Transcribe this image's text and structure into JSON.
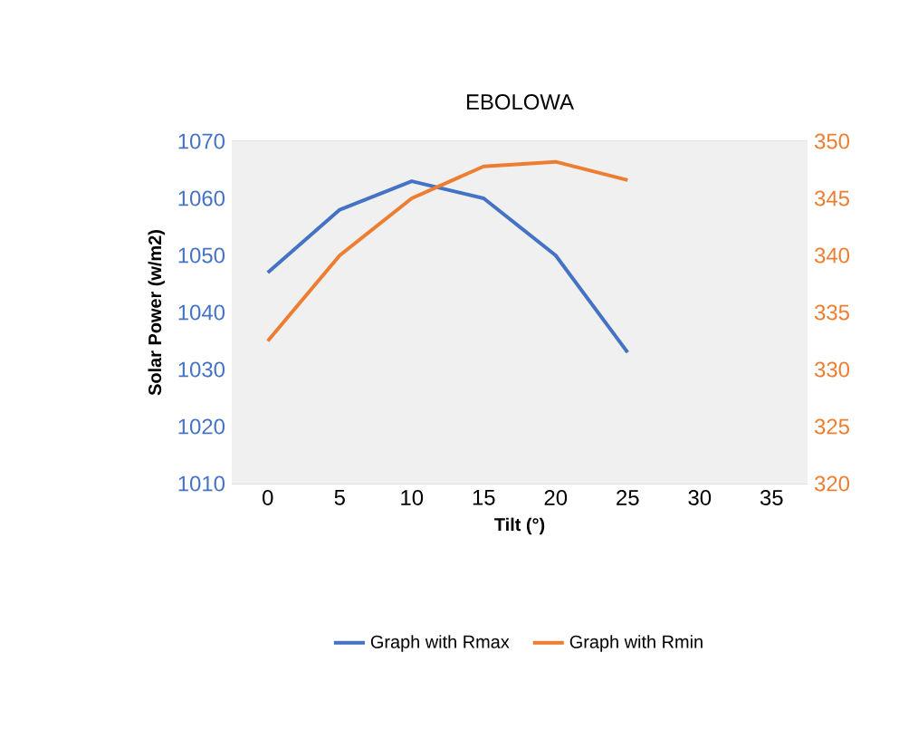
{
  "chart_data": {
    "type": "line",
    "title": "EBOLOWA",
    "xlabel": "Tilt (°)",
    "ylabel": "Solar Power  (w/m2)",
    "categories": [
      "0",
      "5",
      "10",
      "15",
      "20",
      "25",
      "30",
      "35"
    ],
    "series": [
      {
        "name": "Graph with Rmax",
        "color": "#4472c4",
        "values": [
          1047,
          1058,
          1063,
          1060,
          1050,
          1033,
          null,
          null
        ]
      },
      {
        "name": "Graph with Rmin",
        "color": "#ed7d31",
        "axis": "y2",
        "values": [
          332.5,
          340,
          345,
          347.8,
          348.2,
          346.6,
          null,
          null
        ]
      }
    ],
    "ylim": [
      1010,
      1070
    ],
    "yticks": [
      1010,
      1020,
      1030,
      1040,
      1050,
      1060,
      1070
    ],
    "y2lim": [
      320,
      350
    ],
    "y2ticks": [
      320,
      325,
      330,
      335,
      340,
      345,
      350
    ],
    "grid": "y",
    "legend": "bottom",
    "marker": "none"
  }
}
